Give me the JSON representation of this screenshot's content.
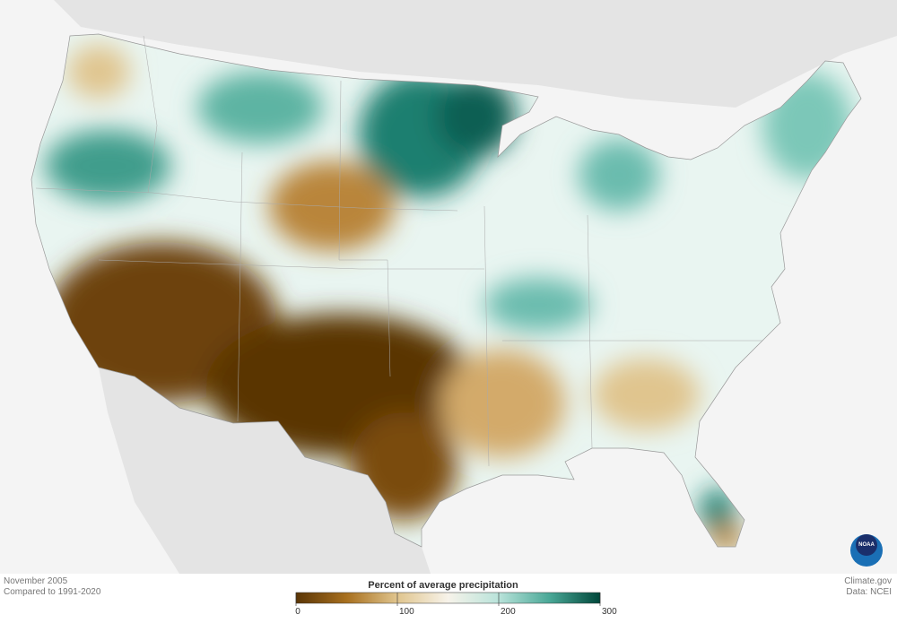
{
  "caption": {
    "period": "November 2005",
    "baseline": "Compared to 1991-2020"
  },
  "credits": {
    "site": "Climate.gov",
    "source": "Data: NCEI",
    "logo": "NOAA"
  },
  "legend": {
    "title": "Percent of average precipitation",
    "range": [
      0,
      300
    ],
    "ticks": [
      0,
      100,
      200,
      300
    ],
    "colors": [
      "#5a3506",
      "#a8701f",
      "#e0c58e",
      "#f7f3ea",
      "#b9e3da",
      "#4aa897",
      "#00473a"
    ]
  }
}
